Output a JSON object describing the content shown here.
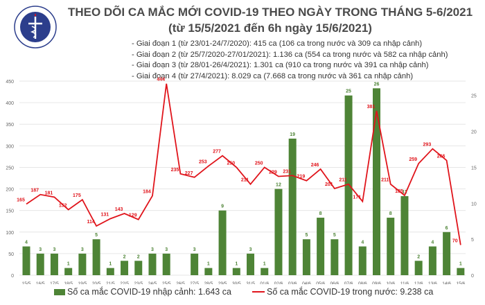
{
  "header": {
    "title_line1": "THEO DÕI CA MẮC MỚI COVID-19 THEO NGÀY TRONG THÁNG 5-6/2021",
    "title_line2": "(từ 15/5/2021 đến 6h ngày 15/6/2021)",
    "logo_text": "BỘ Y TẾ - MINISTRY OF HEALTH",
    "phases": [
      "- Giai đoạn 1 (từ 23/01-24/7/2020): 415 ca (106 ca trong nước và 309 ca nhập cảnh)",
      "- Giai đoạn 2 (từ 25/7/2020-27/01/2021): 1.136 ca (554 ca trong nước và 582 ca nhập cảnh)",
      "- Giai đoạn 3 (từ 28/01-26/4/2021): 1.301 ca (910 ca trong nước và 391 ca nhập cảnh)",
      "- Giai đoạn 4 (từ 27/4/2021): 8.029 ca (7.668 ca trong nước và 361 ca nhập cảnh)"
    ]
  },
  "chart_data": {
    "type": "bar+line",
    "categories": [
      "15/5",
      "16/5",
      "17/5",
      "18/5",
      "19/5",
      "20/5",
      "21/5",
      "22/5",
      "23/5",
      "24/5",
      "25/5",
      "26/5",
      "27/5",
      "28/5",
      "29/5",
      "30/5",
      "31/5",
      "01/6",
      "02/6",
      "03/6",
      "04/6",
      "05/6",
      "06/6",
      "07/6",
      "08/6",
      "09/6",
      "10/6",
      "11/6",
      "12/6",
      "13/6",
      "14/6",
      "15/6"
    ],
    "series": [
      {
        "name": "Số ca mắc COVID-19 nhập cảnh: 1.643 ca",
        "type": "bar",
        "axis": "right",
        "color": "#4e8436",
        "values": [
          4,
          3,
          3,
          1,
          3,
          5,
          1,
          2,
          2,
          3,
          3,
          0,
          3,
          1,
          9,
          1,
          3,
          1,
          12,
          19,
          5,
          8,
          5,
          25,
          4,
          26,
          8,
          11,
          2,
          4,
          6,
          1
        ]
      },
      {
        "name": "Số ca mắc COVID-19 trong nước: 9.238 ca",
        "type": "line",
        "axis": "left",
        "color": "#e0141b",
        "values": [
          165,
          187,
          181,
          152,
          175,
          114,
          131,
          143,
          129,
          184,
          444,
          235,
          227,
          253,
          277,
          250,
          211,
          250,
          229,
          231,
          219,
          246,
          201,
          211,
          171,
          381,
          211,
          185,
          259,
          293,
          266,
          70
        ]
      }
    ],
    "y_left": {
      "range": [
        0,
        450
      ],
      "ticks": [
        0,
        50,
        100,
        150,
        200,
        250,
        300,
        350,
        400,
        450
      ]
    },
    "y_right": {
      "range": [
        0,
        27
      ],
      "ticks": [
        0,
        5,
        10,
        15,
        20,
        25
      ]
    },
    "grid": true,
    "legend_position": "bottom"
  }
}
